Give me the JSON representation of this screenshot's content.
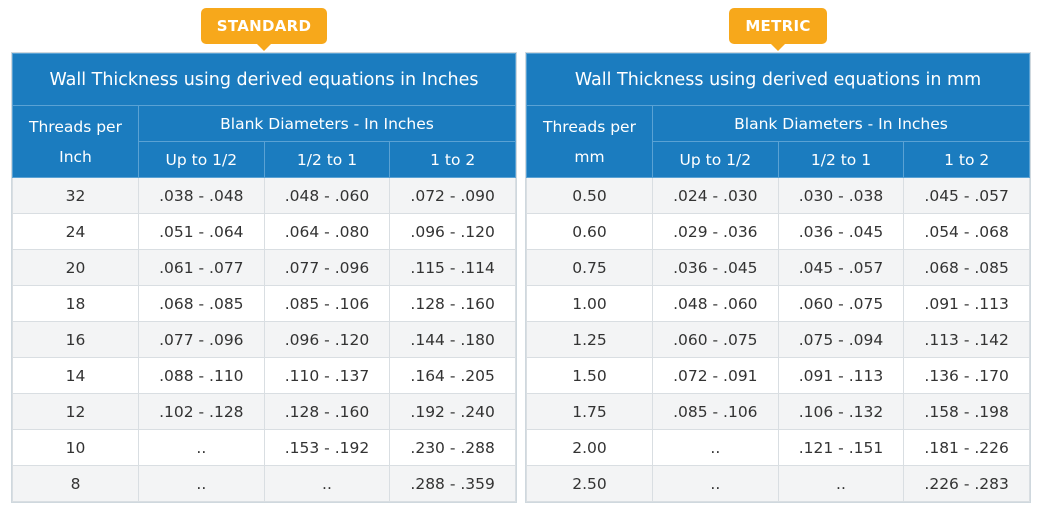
{
  "badges": {
    "standard": "STANDARD",
    "metric": "METRIC"
  },
  "standard": {
    "title": "Wall Thickness using derived equations in Inches",
    "threads_header_line1": "Threads per",
    "threads_header_line2": "Inch",
    "blank_header": "Blank Diameters - In Inches",
    "range_headers": [
      "Up to 1/2",
      "1/2 to 1",
      "1 to 2"
    ],
    "rows": [
      [
        "32",
        ".038 - .048",
        ".048 - .060",
        ".072 - .090"
      ],
      [
        "24",
        ".051 - .064",
        ".064 - .080",
        ".096 - .120"
      ],
      [
        "20",
        ".061 - .077",
        ".077 - .096",
        ".115 - .114"
      ],
      [
        "18",
        ".068 - .085",
        ".085 - .106",
        ".128 - .160"
      ],
      [
        "16",
        ".077 - .096",
        ".096 - .120",
        ".144 - .180"
      ],
      [
        "14",
        ".088 - .110",
        ".110 - .137",
        ".164 - .205"
      ],
      [
        "12",
        ".102 - .128",
        ".128 - .160",
        ".192 - .240"
      ],
      [
        "10",
        "..",
        ".153 - .192",
        ".230 - .288"
      ],
      [
        "8",
        "..",
        "..",
        ".288 - .359"
      ]
    ]
  },
  "metric": {
    "title": "Wall Thickness using derived equations in mm",
    "threads_header_line1": "Threads per",
    "threads_header_line2": "mm",
    "blank_header": "Blank Diameters - In Inches",
    "range_headers": [
      "Up to 1/2",
      "1/2 to 1",
      "1 to 2"
    ],
    "rows": [
      [
        "0.50",
        ".024 - .030",
        ".030 - .038",
        ".045 - .057"
      ],
      [
        "0.60",
        ".029 - .036",
        ".036 - .045",
        ".054 - .068"
      ],
      [
        "0.75",
        ".036 - .045",
        ".045 - .057",
        ".068 - .085"
      ],
      [
        "1.00",
        ".048 - .060",
        ".060 - .075",
        ".091 - .113"
      ],
      [
        "1.25",
        ".060 - .075",
        ".075 - .094",
        ".113 - .142"
      ],
      [
        "1.50",
        ".072 - .091",
        ".091 - .113",
        ".136 - .170"
      ],
      [
        "1.75",
        ".085 - .106",
        ".106 - .132",
        ".158 - .198"
      ],
      [
        "2.00",
        "..",
        ".121 - .151",
        ".181 - .226"
      ],
      [
        "2.50",
        "..",
        "..",
        ".226 - .283"
      ]
    ]
  }
}
